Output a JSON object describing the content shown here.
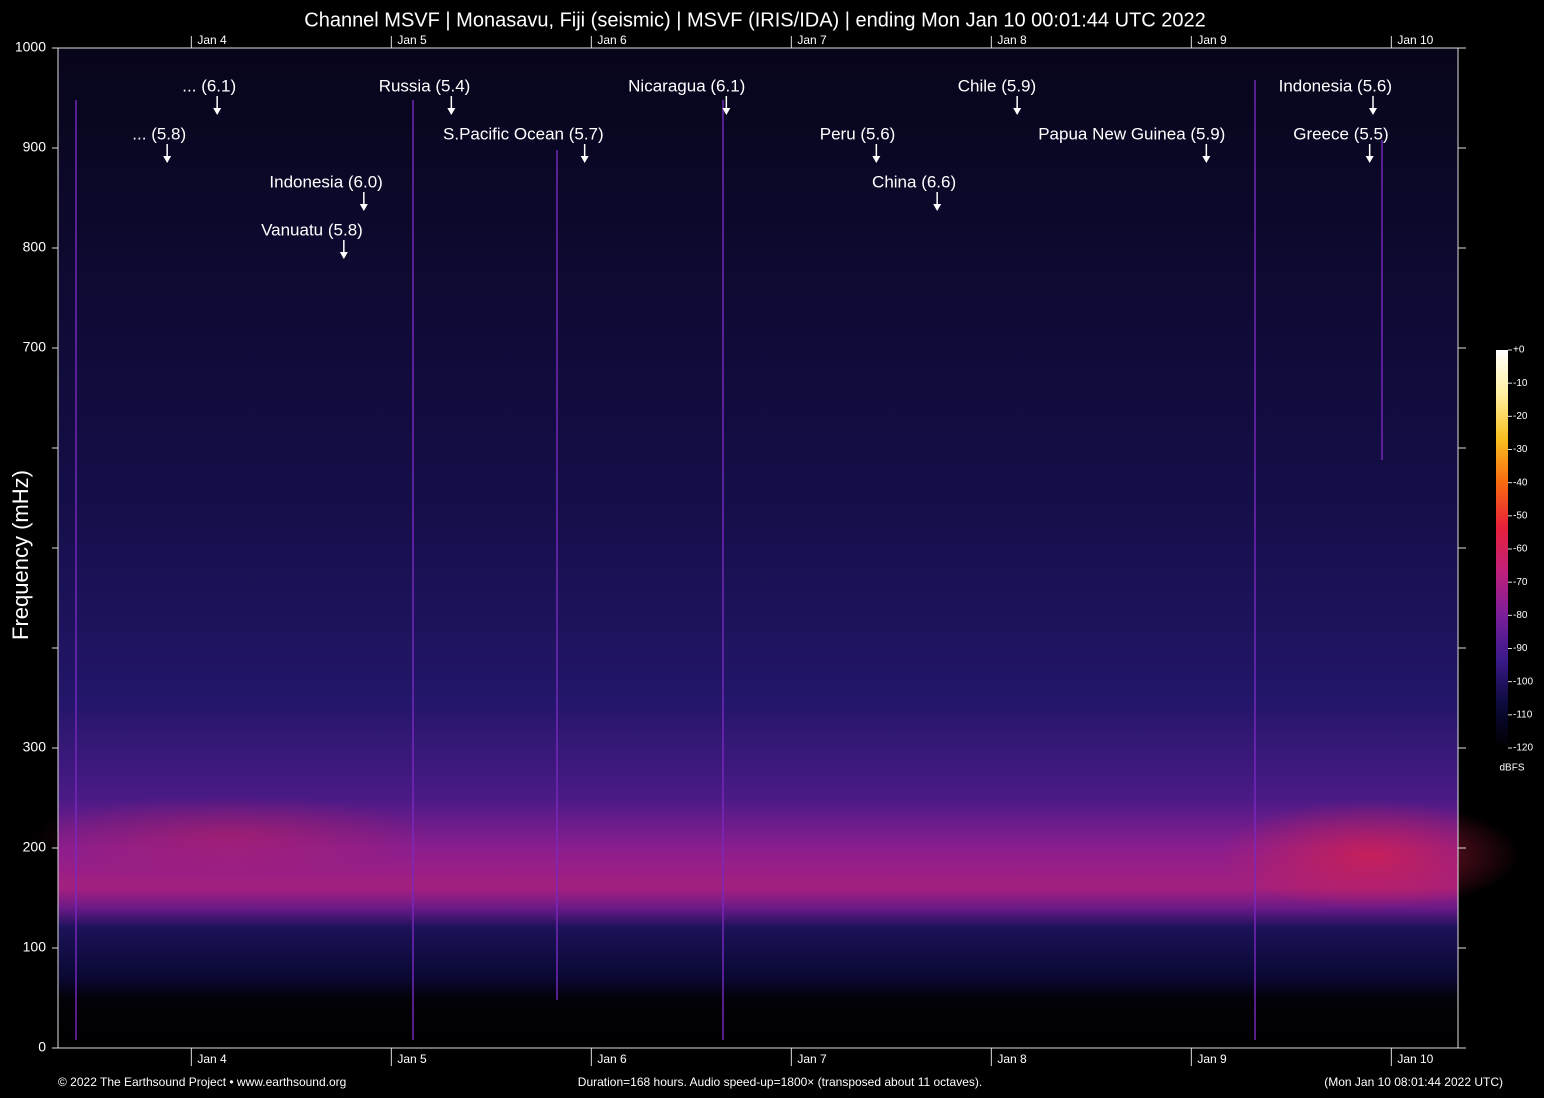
{
  "chart_data": {
    "type": "spectrogram",
    "title": "Channel MSVF | Monasavu, Fiji (seismic) | MSVF (IRIS/IDA) | ending Mon Jan 10 00:01:44 UTC 2022",
    "y_label": "Frequency (mHz)",
    "xlim": [
      0,
      168
    ],
    "xticks": [
      {
        "value": 16,
        "label": "Jan 4"
      },
      {
        "value": 40,
        "label": "Jan 5"
      },
      {
        "value": 64,
        "label": "Jan 6"
      },
      {
        "value": 88,
        "label": "Jan 7"
      },
      {
        "value": 112,
        "label": "Jan 8"
      },
      {
        "value": 136,
        "label": "Jan 9"
      },
      {
        "value": 160,
        "label": "Jan 10"
      }
    ],
    "ylim": [
      0,
      1000
    ],
    "yticks": [
      0,
      100,
      200,
      300,
      {
        "value": 400,
        "label": null
      },
      {
        "value": 500,
        "label": null
      },
      {
        "value": 600,
        "label": null
      },
      700,
      800,
      900,
      1000
    ],
    "annotations": [
      {
        "text": "... (6.1)",
        "x": 19.1
      },
      {
        "text": "... (5.8)",
        "x": 13.1
      },
      {
        "text": "Indonesia (6.0)",
        "x": 36.7
      },
      {
        "text": "Vanuatu (5.8)",
        "x": 34.3
      },
      {
        "text": "Russia (5.4)",
        "x": 47.2
      },
      {
        "text": "S.Pacific Ocean (5.7)",
        "x": 63.2
      },
      {
        "text": "Nicaragua (6.1)",
        "x": 80.2
      },
      {
        "text": "Peru (5.6)",
        "x": 98.2
      },
      {
        "text": "China (6.6)",
        "x": 105.5
      },
      {
        "text": "Chile (5.9)",
        "x": 115.1
      },
      {
        "text": "Papua New Guinea (5.9)",
        "x": 137.8
      },
      {
        "text": "Indonesia (5.6)",
        "x": 157.8
      },
      {
        "text": "Greece (5.5)",
        "x": 157.4
      }
    ],
    "colorbar": {
      "label": "dBFS",
      "lim": [
        -120,
        0
      ],
      "ticks": [
        {
          "value": 0,
          "label": "+0"
        },
        -10,
        -20,
        -30,
        -40,
        -50,
        -60,
        -70,
        -80,
        -90,
        -100,
        -110,
        -120
      ],
      "colors": [
        "#000000",
        "#0c0a3c",
        "#3a1a8a",
        "#7a1e9a",
        "#c0207a",
        "#e8203a",
        "#f86a10",
        "#f8c020",
        "#fff0a0",
        "#ffffff"
      ]
    },
    "footer_left": "© 2022 The Earthsound Project • www.earthsound.org",
    "footer_center": "Duration=168 hours. Audio speed-up=1800× (transposed about 11 octaves).",
    "footer_right": "(Mon Jan 10 08:01:44 2022 UTC)"
  }
}
